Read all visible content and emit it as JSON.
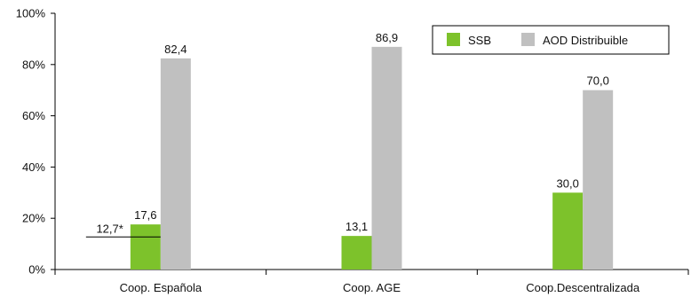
{
  "chart_data": {
    "type": "bar",
    "categories": [
      "Coop. Española",
      "Coop. AGE",
      "Coop.Descentralizada"
    ],
    "series": [
      {
        "name": "SSB",
        "values": [
          17.6,
          13.1,
          30.0
        ],
        "labels": [
          "17,6",
          "13,1",
          "30,0"
        ],
        "color": "#7dc22b"
      },
      {
        "name": "AOD Distribuible",
        "values": [
          82.4,
          86.9,
          70.0
        ],
        "labels": [
          "82,4",
          "86,9",
          "70,0"
        ],
        "color": "#c0c0c0"
      }
    ],
    "yticks": [
      "0%",
      "20%",
      "40%",
      "60%",
      "80%",
      "100%"
    ],
    "ylim": [
      0,
      100
    ],
    "annotation": {
      "label": "12,7*",
      "value": 12.7,
      "category_index": 0
    },
    "legend": {
      "position": "top-right"
    },
    "grid": false
  }
}
